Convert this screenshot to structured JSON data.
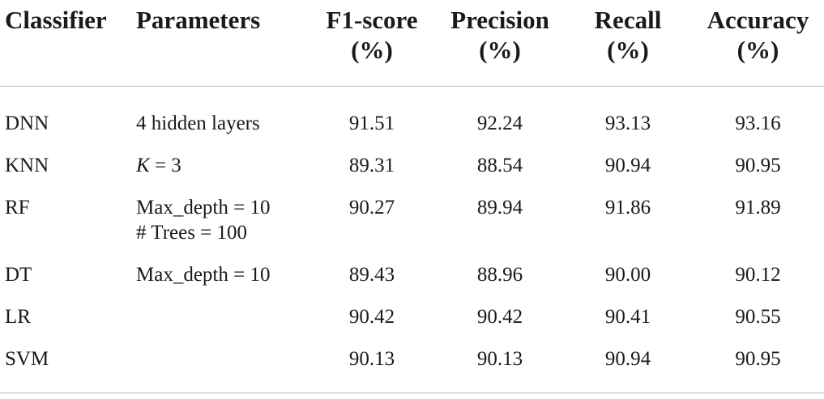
{
  "table": {
    "headers": [
      {
        "line1": "Classifier",
        "line2": ""
      },
      {
        "line1": "Parameters",
        "line2": ""
      },
      {
        "line1": "F1-score",
        "line2": "(%)"
      },
      {
        "line1": "Precision",
        "line2": "(%)"
      },
      {
        "line1": "Recall",
        "line2": "(%)"
      },
      {
        "line1": "Accuracy",
        "line2": "(%)"
      }
    ],
    "rows": [
      {
        "classifier": "DNN",
        "param_a": "4 hidden layers",
        "param_b": "",
        "f1": "91.51",
        "precision": "92.24",
        "recall": "93.13",
        "accuracy": "93.16"
      },
      {
        "classifier": "KNN",
        "param_k": "K",
        "param_a": " = 3",
        "param_b": "",
        "f1": "89.31",
        "precision": "88.54",
        "recall": "90.94",
        "accuracy": "90.95"
      },
      {
        "classifier": "RF",
        "param_a": "Max_depth = 10",
        "param_b": "# Trees = 100",
        "f1": "90.27",
        "precision": "89.94",
        "recall": "91.86",
        "accuracy": "91.89"
      },
      {
        "classifier": "DT",
        "param_a": "Max_depth = 10",
        "param_b": "",
        "f1": "89.43",
        "precision": "88.96",
        "recall": "90.00",
        "accuracy": "90.12"
      },
      {
        "classifier": "LR",
        "param_a": "",
        "param_b": "",
        "f1": "90.42",
        "precision": "90.42",
        "recall": "90.41",
        "accuracy": "90.55"
      },
      {
        "classifier": "SVM",
        "param_a": "",
        "param_b": "",
        "f1": "90.13",
        "precision": "90.13",
        "recall": "90.94",
        "accuracy": "90.95"
      }
    ]
  }
}
